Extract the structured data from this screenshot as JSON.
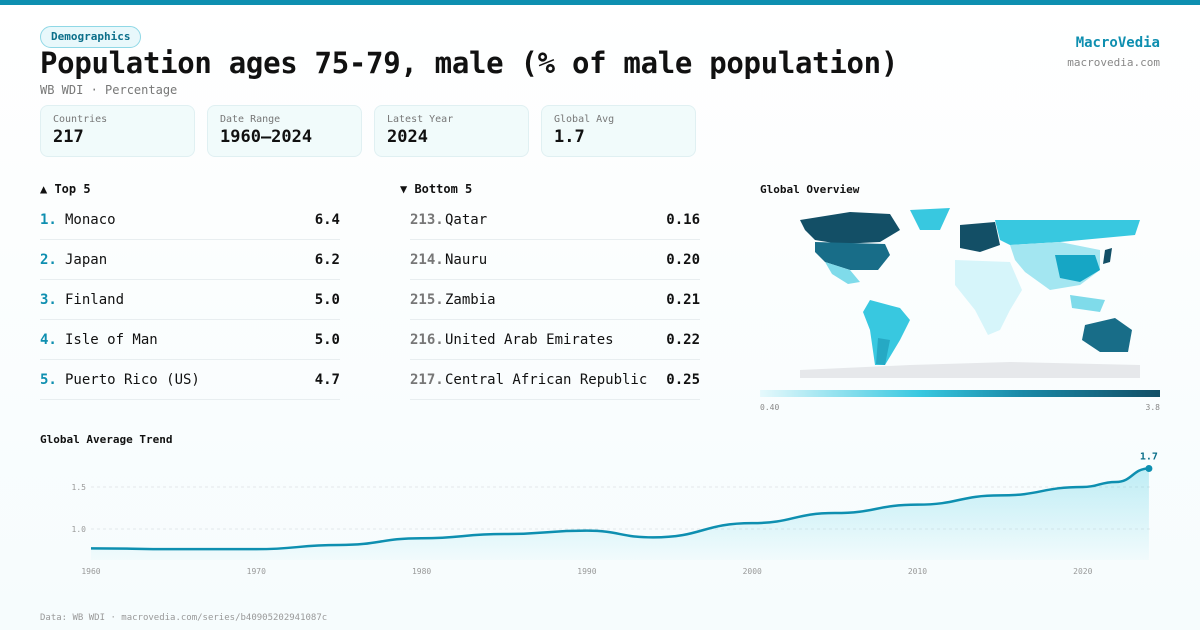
{
  "header": {
    "badge": "Demographics",
    "title": "Population ages 75-79, male (% of male population)",
    "subtitle": "WB WDI · Percentage",
    "brand": "MacroVedia",
    "brand_url": "macrovedia.com"
  },
  "stats": [
    {
      "label": "Countries",
      "value": "217"
    },
    {
      "label": "Date Range",
      "value": "1960–2024"
    },
    {
      "label": "Latest Year",
      "value": "2024"
    },
    {
      "label": "Global Avg",
      "value": "1.7"
    }
  ],
  "top5": {
    "title": "▲ Top 5",
    "items": [
      {
        "rank": "1.",
        "name": "Monaco",
        "value": "6.4"
      },
      {
        "rank": "2.",
        "name": "Japan",
        "value": "6.2"
      },
      {
        "rank": "3.",
        "name": "Finland",
        "value": "5.0"
      },
      {
        "rank": "4.",
        "name": "Isle of Man",
        "value": "5.0"
      },
      {
        "rank": "5.",
        "name": "Puerto Rico (US)",
        "value": "4.7"
      }
    ]
  },
  "bottom5": {
    "title": "▼ Bottom 5",
    "items": [
      {
        "rank": "213.",
        "name": "Qatar",
        "value": "0.16"
      },
      {
        "rank": "214.",
        "name": "Nauru",
        "value": "0.20"
      },
      {
        "rank": "215.",
        "name": "Zambia",
        "value": "0.21"
      },
      {
        "rank": "216.",
        "name": "United Arab Emirates",
        "value": "0.22"
      },
      {
        "rank": "217.",
        "name": "Central African Republic",
        "value": "0.25"
      }
    ]
  },
  "map": {
    "title": "Global Overview",
    "legend_min": "0.40",
    "legend_max": "3.8",
    "colors": {
      "low": "#e6f9fc",
      "mid": "#38c8e0",
      "high": "#134f66",
      "nodata": "#e6e8eb"
    }
  },
  "chart_data": {
    "type": "area",
    "title": "Global Average Trend",
    "x": [
      1960,
      1965,
      1970,
      1975,
      1980,
      1985,
      1990,
      1994,
      2000,
      2005,
      2010,
      2015,
      2020,
      2022,
      2024
    ],
    "values": [
      0.77,
      0.76,
      0.76,
      0.81,
      0.89,
      0.94,
      0.98,
      0.9,
      1.07,
      1.19,
      1.29,
      1.4,
      1.5,
      1.56,
      1.72
    ],
    "xticks": [
      1960,
      1970,
      1980,
      1990,
      2000,
      2010,
      2020
    ],
    "yticks": [
      1.0,
      1.5
    ],
    "grid": true,
    "last_label": "1.7",
    "color": "#0e8fb0"
  },
  "footer": "Data: WB WDI · macrovedia.com/series/b40905202941087c"
}
